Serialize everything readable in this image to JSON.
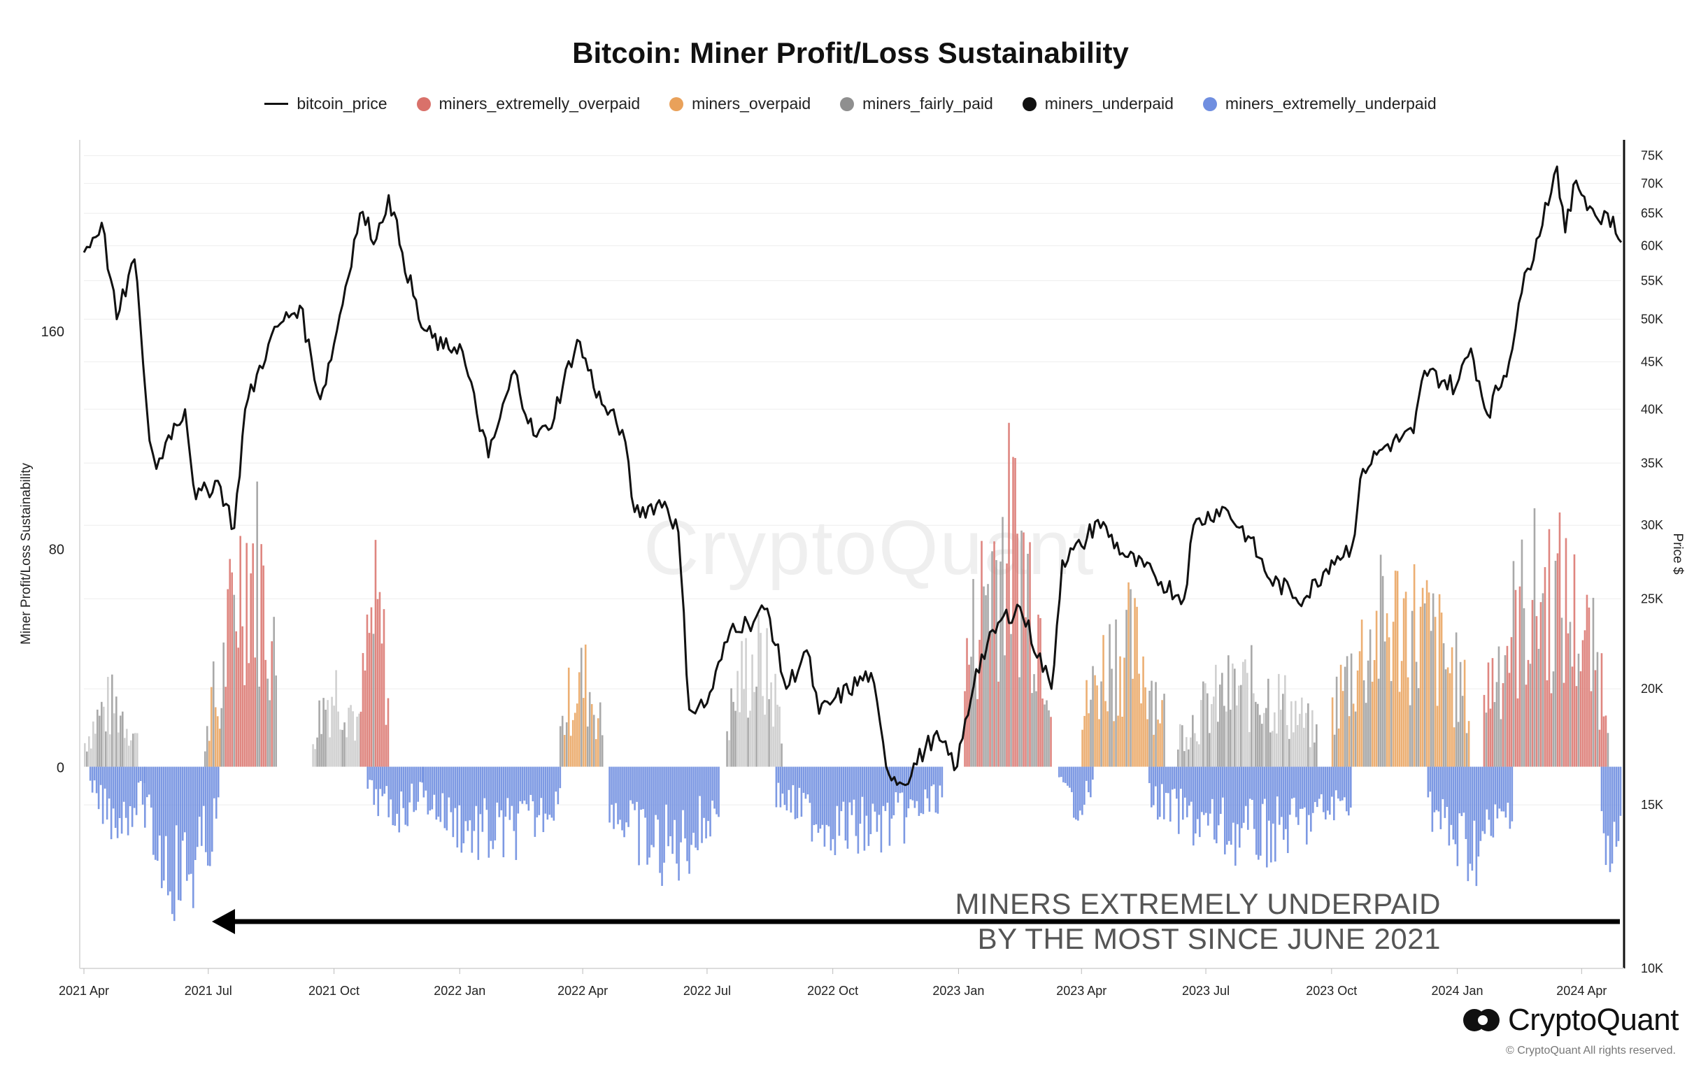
{
  "chart_data": {
    "type": "area+line",
    "title": "Bitcoin: Miner Profit/Loss Sustainability",
    "legend": [
      {
        "name": "bitcoin_price",
        "kind": "line",
        "color": "#111111"
      },
      {
        "name": "miners_extremelly_overpaid",
        "kind": "dot",
        "color": "#d9716a"
      },
      {
        "name": "miners_overpaid",
        "kind": "dot",
        "color": "#e9a15a"
      },
      {
        "name": "miners_fairly_paid",
        "kind": "dot",
        "color": "#8f8f8f"
      },
      {
        "name": "miners_underpaid",
        "kind": "dot",
        "color": "#111111"
      },
      {
        "name": "miners_extremelly_underpaid",
        "kind": "dot",
        "color": "#6f8ee0"
      }
    ],
    "legend_placement": "top-center",
    "ylabel_left": "Miner Profit/Loss Sustainability",
    "ylabel_right": "Price $",
    "y_left_ticks": [
      0,
      80,
      160
    ],
    "y_left_tick_labels": [
      "0",
      "80",
      "160"
    ],
    "y_left_range": [
      -74,
      230
    ],
    "y_right_scale": "log",
    "y_right_range": [
      10000,
      78000
    ],
    "y_right_ticks": [
      10000,
      15000,
      20000,
      25000,
      30000,
      35000,
      40000,
      45000,
      50000,
      55000,
      60000,
      65000,
      70000,
      75000
    ],
    "y_right_tick_labels": [
      "10K",
      "15K",
      "20K",
      "25K",
      "30K",
      "35K",
      "40K",
      "45K",
      "50K",
      "55K",
      "60K",
      "65K",
      "70K",
      "75K"
    ],
    "x_range": [
      "2021-04-01",
      "2024-04-30"
    ],
    "x_ticks": [
      "2021-04-01",
      "2021-07-01",
      "2021-10-01",
      "2022-01-01",
      "2022-04-01",
      "2022-07-01",
      "2022-10-01",
      "2023-01-01",
      "2023-04-01",
      "2023-07-01",
      "2023-10-01",
      "2024-01-01",
      "2024-04-01"
    ],
    "x_tick_labels": [
      "2021 Apr",
      "2021 Jul",
      "2021 Oct",
      "2022 Jan",
      "2022 Apr",
      "2022 Jul",
      "2022 Oct",
      "2023 Jan",
      "2023 Apr",
      "2023 Jul",
      "2023 Oct",
      "2024 Jan",
      "2024 Apr"
    ],
    "grid": "horizontal",
    "bitcoin_price": [
      [
        "2021-04-01",
        59000
      ],
      [
        "2021-04-14",
        63500
      ],
      [
        "2021-04-25",
        50000
      ],
      [
        "2021-05-08",
        58000
      ],
      [
        "2021-05-12",
        50000
      ],
      [
        "2021-05-19",
        37000
      ],
      [
        "2021-05-24",
        34500
      ],
      [
        "2021-06-02",
        37500
      ],
      [
        "2021-06-14",
        40000
      ],
      [
        "2021-06-22",
        32000
      ],
      [
        "2021-07-08",
        33500
      ],
      [
        "2021-07-20",
        29800
      ],
      [
        "2021-07-28",
        40000
      ],
      [
        "2021-08-14",
        47000
      ],
      [
        "2021-08-23",
        49500
      ],
      [
        "2021-09-06",
        51700
      ],
      [
        "2021-09-21",
        41000
      ],
      [
        "2021-10-01",
        47000
      ],
      [
        "2021-10-20",
        65000
      ],
      [
        "2021-11-01",
        61000
      ],
      [
        "2021-11-10",
        68000
      ],
      [
        "2021-11-20",
        59000
      ],
      [
        "2021-12-04",
        49000
      ],
      [
        "2021-12-20",
        46500
      ],
      [
        "2022-01-01",
        47000
      ],
      [
        "2022-01-22",
        35500
      ],
      [
        "2022-02-10",
        44000
      ],
      [
        "2022-02-24",
        37500
      ],
      [
        "2022-03-07",
        38000
      ],
      [
        "2022-03-28",
        47500
      ],
      [
        "2022-04-15",
        40500
      ],
      [
        "2022-04-30",
        38000
      ],
      [
        "2022-05-09",
        31000
      ],
      [
        "2022-05-31",
        31800
      ],
      [
        "2022-06-10",
        29500
      ],
      [
        "2022-06-18",
        19000
      ],
      [
        "2022-07-01",
        19300
      ],
      [
        "2022-07-20",
        23500
      ],
      [
        "2022-07-31",
        23500
      ],
      [
        "2022-08-14",
        24400
      ],
      [
        "2022-08-28",
        20000
      ],
      [
        "2022-09-12",
        22000
      ],
      [
        "2022-09-21",
        18800
      ],
      [
        "2022-10-01",
        19400
      ],
      [
        "2022-10-29",
        20800
      ],
      [
        "2022-11-09",
        16500
      ],
      [
        "2022-11-21",
        15800
      ],
      [
        "2022-12-14",
        17800
      ],
      [
        "2022-12-31",
        16500
      ],
      [
        "2023-01-14",
        21000
      ],
      [
        "2023-02-01",
        23700
      ],
      [
        "2023-02-15",
        24500
      ],
      [
        "2023-03-10",
        20000
      ],
      [
        "2023-03-18",
        27500
      ],
      [
        "2023-04-01",
        28500
      ],
      [
        "2023-04-13",
        30400
      ],
      [
        "2023-05-01",
        28000
      ],
      [
        "2023-05-25",
        26400
      ],
      [
        "2023-06-15",
        25000
      ],
      [
        "2023-06-22",
        30000
      ],
      [
        "2023-07-13",
        31400
      ],
      [
        "2023-08-01",
        29200
      ],
      [
        "2023-08-17",
        26200
      ],
      [
        "2023-09-11",
        25000
      ],
      [
        "2023-10-01",
        27500
      ],
      [
        "2023-10-16",
        28500
      ],
      [
        "2023-10-24",
        34500
      ],
      [
        "2023-11-09",
        36500
      ],
      [
        "2023-11-30",
        37700
      ],
      [
        "2023-12-08",
        44000
      ],
      [
        "2023-12-31",
        42300
      ],
      [
        "2024-01-11",
        46500
      ],
      [
        "2024-01-23",
        39500
      ],
      [
        "2024-02-08",
        45000
      ],
      [
        "2024-02-15",
        52000
      ],
      [
        "2024-02-28",
        61000
      ],
      [
        "2024-03-14",
        73000
      ],
      [
        "2024-03-20",
        62000
      ],
      [
        "2024-03-28",
        70500
      ],
      [
        "2024-04-13",
        64000
      ],
      [
        "2024-04-20",
        65000
      ],
      [
        "2024-04-30",
        60500
      ]
    ],
    "sustainability_positive": [
      {
        "start": "2021-04-01",
        "end": "2021-05-10",
        "peak": 35,
        "color": "#c8c8c8"
      },
      {
        "start": "2021-06-28",
        "end": "2021-07-10",
        "peak": 40,
        "color": "#e9a15a"
      },
      {
        "start": "2021-07-10",
        "end": "2021-08-20",
        "peak": 120,
        "color": "#d9716a"
      },
      {
        "start": "2021-09-15",
        "end": "2021-10-20",
        "peak": 45,
        "color": "#c8c8c8"
      },
      {
        "start": "2021-10-20",
        "end": "2021-11-10",
        "peak": 85,
        "color": "#d9716a"
      },
      {
        "start": "2022-03-15",
        "end": "2022-04-15",
        "peak": 50,
        "color": "#e9a15a"
      },
      {
        "start": "2022-07-15",
        "end": "2022-08-25",
        "peak": 60,
        "color": "#c8c8c8"
      },
      {
        "start": "2023-01-05",
        "end": "2023-03-10",
        "peak": 130,
        "color": "#d9716a"
      },
      {
        "start": "2023-04-01",
        "end": "2023-06-01",
        "peak": 70,
        "color": "#e9a15a"
      },
      {
        "start": "2023-06-10",
        "end": "2023-09-20",
        "peak": 45,
        "color": "#c8c8c8"
      },
      {
        "start": "2023-10-01",
        "end": "2024-01-10",
        "peak": 85,
        "color": "#e9a15a"
      },
      {
        "start": "2024-01-20",
        "end": "2024-04-20",
        "peak": 100,
        "color": "#d9716a"
      }
    ],
    "sustainability_negative": [
      {
        "start": "2021-04-05",
        "end": "2021-05-15",
        "trough": -28
      },
      {
        "start": "2021-05-15",
        "end": "2021-07-08",
        "trough": -60
      },
      {
        "start": "2021-10-25",
        "end": "2021-12-05",
        "trough": -25
      },
      {
        "start": "2021-12-05",
        "end": "2022-03-15",
        "trough": -38
      },
      {
        "start": "2022-04-20",
        "end": "2022-07-10",
        "trough": -46
      },
      {
        "start": "2022-08-20",
        "end": "2022-12-20",
        "trough": -35
      },
      {
        "start": "2023-03-15",
        "end": "2023-04-10",
        "trough": -20
      },
      {
        "start": "2023-05-20",
        "end": "2023-10-15",
        "trough": -38
      },
      {
        "start": "2023-12-10",
        "end": "2024-02-10",
        "trough": -45
      },
      {
        "start": "2024-04-15",
        "end": "2024-04-30",
        "trough": -55
      }
    ],
    "annotation": [
      "MINERS EXTREMELY UNDERPAID",
      "BY THE MOST SINCE JUNE 2021"
    ]
  },
  "branding": {
    "watermark": "CryptoQuant",
    "logo_text": "CryptoQuant",
    "copyright": "© CryptoQuant All rights reserved."
  }
}
